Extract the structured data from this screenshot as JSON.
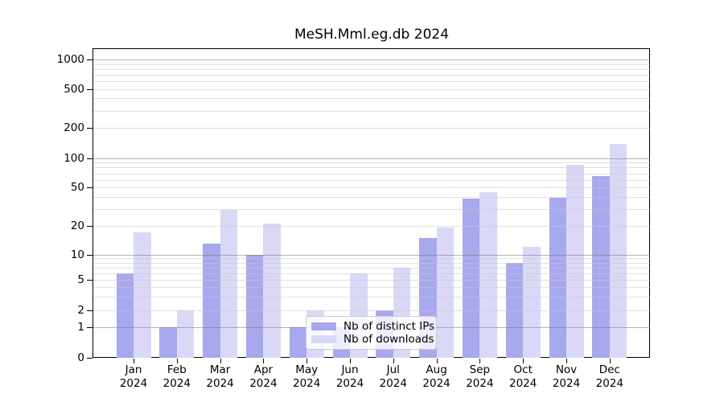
{
  "figure": {
    "title": "MeSH.Mml.eg.db 2024"
  },
  "chart_data": {
    "type": "bar",
    "title": "MeSH.Mml.eg.db 2024",
    "categories": [
      "Jan",
      "Feb",
      "Mar",
      "Apr",
      "May",
      "Jun",
      "Jul",
      "Aug",
      "Sep",
      "Oct",
      "Nov",
      "Dec"
    ],
    "year_label": "2024",
    "series": [
      {
        "name": "Nb of distinct IPs",
        "color": "#a8a8ee",
        "values": [
          6,
          1,
          13,
          10,
          1,
          1,
          2,
          15,
          38,
          8,
          39,
          65
        ]
      },
      {
        "name": "Nb of downloads",
        "color": "#d9d9f7",
        "values": [
          17,
          2,
          29,
          21,
          2,
          6,
          7,
          19,
          45,
          12,
          85,
          140
        ]
      }
    ],
    "y_ticks": [
      0,
      1,
      2,
      5,
      10,
      20,
      50,
      100,
      200,
      500,
      1000
    ],
    "y_scale": "log-like (pure log above 10, compressed toward 0 below)",
    "ylim": [
      0,
      1300
    ],
    "xlabel": "",
    "ylabel": "",
    "grid": "on",
    "legend_position": "lower center inside plot",
    "colors": {
      "major_gridline": "#b3b3b3",
      "minor_gridline": "#e7e7e7",
      "spine": "#000000",
      "text": "#000000",
      "background": "#ffffff"
    }
  }
}
